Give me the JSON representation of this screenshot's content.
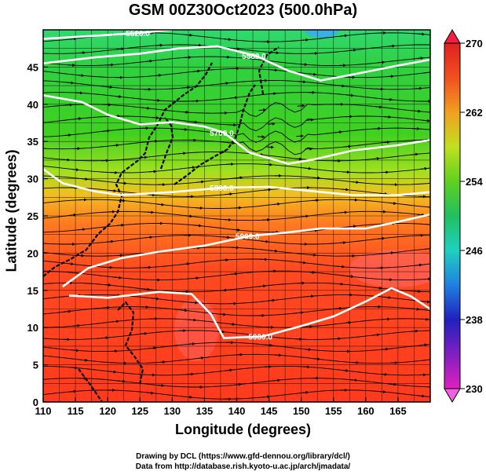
{
  "title": "GSM 00Z30Oct2023 (500.0hPa)",
  "x_axis": {
    "label": "Longitude (degrees)",
    "range": [
      110,
      170
    ],
    "ticks": [
      "110",
      "115",
      "120",
      "125",
      "130",
      "135",
      "140",
      "145",
      "150",
      "155",
      "160",
      "165"
    ]
  },
  "y_axis": {
    "label": "Latitude  (degrees)",
    "range": [
      0,
      50
    ],
    "ticks": [
      "0",
      "5",
      "10",
      "15",
      "20",
      "25",
      "30",
      "35",
      "40",
      "45"
    ]
  },
  "colorbar": {
    "range": [
      230,
      270
    ],
    "ticks": [
      "230",
      "238",
      "246",
      "254",
      "262",
      "270"
    ],
    "colors": [
      "#e020c0",
      "#8020c0",
      "#2020c0",
      "#2080e0",
      "#20d0c0",
      "#20c060",
      "#60d020",
      "#c0e020",
      "#f0a020",
      "#f05020",
      "#e02020"
    ]
  },
  "contours": [
    {
      "label": "5520.0",
      "points": [
        [
          110,
          48.8
        ],
        [
          118,
          49.2
        ],
        [
          125,
          49.6
        ],
        [
          130,
          50
        ]
      ]
    },
    {
      "label": "5580.0",
      "points": [
        [
          110,
          45.5
        ],
        [
          118,
          46.3
        ],
        [
          125,
          46.8
        ],
        [
          131,
          47.5
        ],
        [
          137,
          47.8
        ],
        [
          143,
          46.5
        ],
        [
          148,
          44.5
        ],
        [
          153,
          43.2
        ],
        [
          158,
          44
        ],
        [
          165,
          45.2
        ],
        [
          170,
          46
        ]
      ]
    },
    {
      "label": "5700.0",
      "points": [
        [
          110,
          41.2
        ],
        [
          116,
          40.3
        ],
        [
          120,
          38.6
        ],
        [
          125,
          37.3
        ],
        [
          130,
          37.6
        ],
        [
          135,
          37
        ],
        [
          138,
          36.2
        ],
        [
          142,
          33.5
        ],
        [
          148,
          32
        ],
        [
          152,
          32.6
        ],
        [
          158,
          33.8
        ],
        [
          165,
          34.5
        ],
        [
          170,
          35.2
        ]
      ]
    },
    {
      "label": "5800.0",
      "points": [
        [
          110,
          31.3
        ],
        [
          113,
          29.4
        ],
        [
          118,
          28.3
        ],
        [
          122,
          27.8
        ],
        [
          130,
          28.2
        ],
        [
          138,
          28.8
        ],
        [
          145,
          28.9
        ],
        [
          152,
          28.3
        ],
        [
          158,
          27.8
        ],
        [
          165,
          27.8
        ],
        [
          170,
          28.2
        ]
      ]
    },
    {
      "label": "5900.0",
      "points": [
        [
          113,
          15.5
        ],
        [
          117,
          18
        ],
        [
          122,
          19.3
        ],
        [
          128,
          20.2
        ],
        [
          135,
          21
        ],
        [
          142,
          22.3
        ],
        [
          148,
          22.8
        ],
        [
          153,
          23.3
        ],
        [
          160,
          23.3
        ],
        [
          166,
          24.4
        ],
        [
          170,
          25.2
        ]
      ]
    },
    {
      "label": "5930.0",
      "points": [
        [
          114,
          14.3
        ],
        [
          120,
          14
        ],
        [
          128,
          14.8
        ],
        [
          133,
          14.5
        ],
        [
          136,
          11.8
        ],
        [
          138,
          8.6
        ],
        [
          144,
          8.8
        ],
        [
          150,
          10.2
        ],
        [
          155,
          11.5
        ],
        [
          160,
          13.5
        ],
        [
          164,
          15.3
        ],
        [
          167,
          14.2
        ],
        [
          170,
          12.5
        ]
      ]
    }
  ],
  "credits": [
    "Drawing by DCL (https://www.gfd-dennou.org/library/dcl/)",
    "Data from http://database.rish.kyoto-u.ac.jp/arch/jmadata/"
  ]
}
